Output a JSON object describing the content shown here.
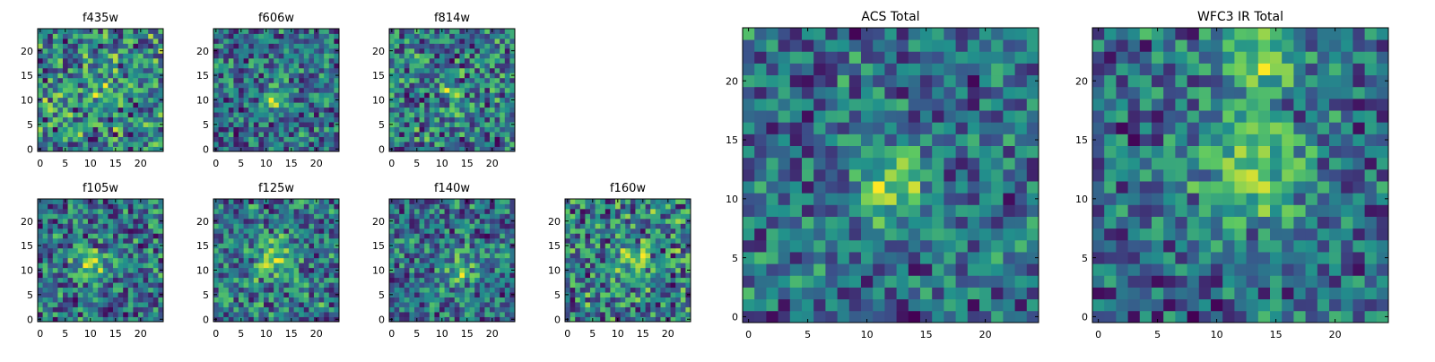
{
  "figure": {
    "background": "#ffffff",
    "colormap": "viridis"
  },
  "colormap_stops": [
    "#440154",
    "#3b528b",
    "#21918c",
    "#5ec962",
    "#fde725"
  ],
  "chart_data": [
    {
      "type": "heatmap",
      "title": "f435w",
      "image_size": 25,
      "xticks": [
        0,
        5,
        10,
        15,
        20
      ],
      "yticks": [
        0,
        5,
        10,
        15,
        20
      ],
      "seed": 11,
      "noise": 0.95,
      "blobs": [
        {
          "x": 12,
          "y": 12,
          "sigma": 2.5,
          "amp": 0.15
        }
      ]
    },
    {
      "type": "heatmap",
      "title": "f606w",
      "image_size": 25,
      "xticks": [
        0,
        5,
        10,
        15,
        20
      ],
      "yticks": [
        0,
        5,
        10,
        15,
        20
      ],
      "seed": 23,
      "noise": 0.9,
      "blobs": [
        {
          "x": 11,
          "y": 10,
          "sigma": 1.6,
          "amp": 0.55
        }
      ]
    },
    {
      "type": "heatmap",
      "title": "f814w",
      "image_size": 25,
      "xticks": [
        0,
        5,
        10,
        15,
        20
      ],
      "yticks": [
        0,
        5,
        10,
        15,
        20
      ],
      "seed": 37,
      "noise": 0.9,
      "blobs": [
        {
          "x": 12,
          "y": 11,
          "sigma": 2,
          "amp": 0.3
        }
      ]
    },
    {
      "type": "heatmap",
      "title": "f105w",
      "image_size": 25,
      "xticks": [
        0,
        5,
        10,
        15,
        20
      ],
      "yticks": [
        0,
        5,
        10,
        15,
        20
      ],
      "seed": 41,
      "noise": 0.7,
      "blobs": [
        {
          "x": 10,
          "y": 11,
          "sigma": 2.2,
          "amp": 0.4
        }
      ]
    },
    {
      "type": "heatmap",
      "title": "f125w",
      "image_size": 25,
      "xticks": [
        0,
        5,
        10,
        15,
        20
      ],
      "yticks": [
        0,
        5,
        10,
        15,
        20
      ],
      "seed": 53,
      "noise": 0.65,
      "blobs": [
        {
          "x": 12,
          "y": 12,
          "sigma": 3,
          "amp": 0.35
        }
      ]
    },
    {
      "type": "heatmap",
      "title": "f140w",
      "image_size": 25,
      "xticks": [
        0,
        5,
        10,
        15,
        20
      ],
      "yticks": [
        0,
        5,
        10,
        15,
        20
      ],
      "seed": 67,
      "noise": 0.7,
      "blobs": [
        {
          "x": 14,
          "y": 10,
          "sigma": 2.5,
          "amp": 0.35
        }
      ]
    },
    {
      "type": "heatmap",
      "title": "f160w",
      "image_size": 25,
      "xticks": [
        0,
        5,
        10,
        15,
        20
      ],
      "yticks": [
        0,
        5,
        10,
        15,
        20
      ],
      "seed": 79,
      "noise": 0.7,
      "blobs": [
        {
          "x": 13,
          "y": 12,
          "sigma": 2.5,
          "amp": 0.35
        }
      ]
    },
    {
      "type": "heatmap",
      "title": "ACS Total",
      "image_size": 25,
      "xticks": [
        0,
        5,
        10,
        15,
        20
      ],
      "yticks": [
        0,
        5,
        10,
        15,
        20
      ],
      "seed": 97,
      "noise": 0.55,
      "blobs": [
        {
          "x": 12,
          "y": 11,
          "sigma": 2,
          "amp": 0.5
        }
      ]
    },
    {
      "type": "heatmap",
      "title": "WFC3 IR Total",
      "image_size": 25,
      "xticks": [
        0,
        5,
        10,
        15,
        20
      ],
      "yticks": [
        0,
        5,
        10,
        15,
        20
      ],
      "seed": 113,
      "noise": 0.5,
      "blobs": [
        {
          "x": 13,
          "y": 12,
          "sigma": 3,
          "amp": 0.45
        },
        {
          "x": 14,
          "y": 22,
          "sigma": 2.5,
          "amp": 0.35
        }
      ]
    }
  ]
}
